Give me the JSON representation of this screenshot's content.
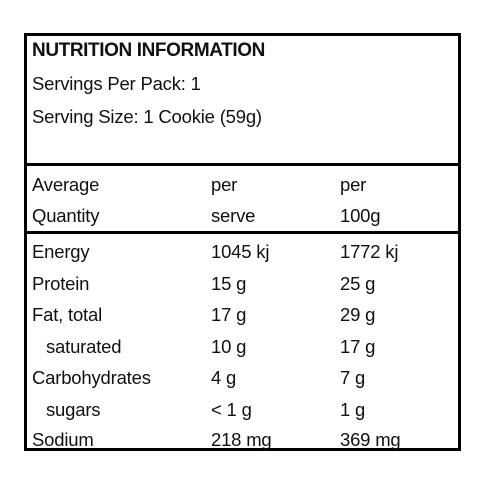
{
  "header": {
    "title": "NUTRITION INFORMATION",
    "servings": "Servings Per Pack: 1",
    "serving_size": "Serving Size: 1 Cookie (59g)"
  },
  "columns": {
    "label_line1": "Average",
    "label_line2": "Quantity",
    "serve_line1": "per",
    "serve_line2": "serve",
    "per100_line1": "per",
    "per100_line2": "100g"
  },
  "rows": [
    {
      "name": "Energy",
      "serve": "1045 kj",
      "per100": "1772 kj"
    },
    {
      "name": "Protein",
      "serve": "15 g",
      "per100": "25 g"
    },
    {
      "name": "Fat, total",
      "serve": "17 g",
      "per100": "29 g"
    },
    {
      "name": "saturated",
      "serve": "10 g",
      "per100": "17 g"
    },
    {
      "name": "Carbohydrates",
      "serve": "4 g",
      "per100": "7 g"
    },
    {
      "name": "sugars",
      "serve": "< 1 g",
      "per100": "1 g"
    },
    {
      "name": "Sodium",
      "serve": "218 mg",
      "per100": "369 mg"
    }
  ],
  "colors": {
    "border": "#000000",
    "text": "#111111",
    "background": "#ffffff"
  }
}
